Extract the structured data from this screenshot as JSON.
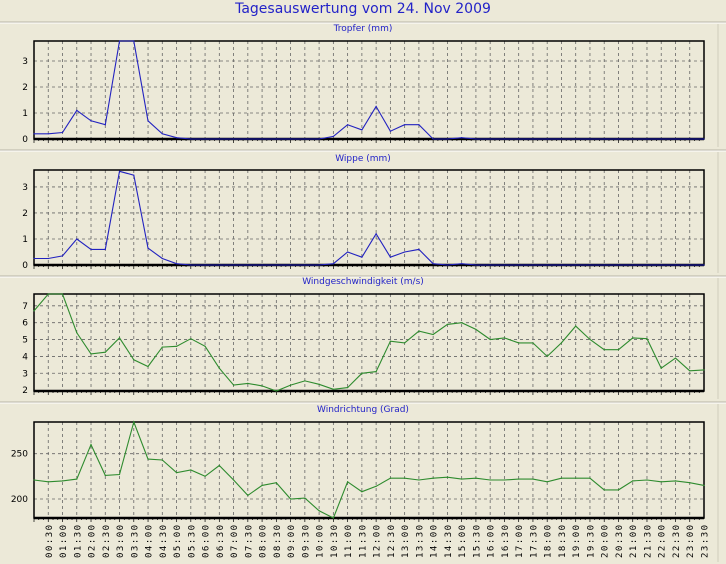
{
  "title": "Tagesauswertung vom 24. Nov 2009",
  "chart_data": [
    {
      "type": "line",
      "title": "Tropfer (mm)",
      "color": "#2222c0",
      "ylim": [
        0,
        3.77
      ],
      "yticks": [
        0,
        1,
        2,
        3
      ],
      "grid": true,
      "values": [
        0.2,
        0.2,
        0.25,
        1.1,
        0.7,
        0.55,
        3.8,
        3.8,
        0.7,
        0.2,
        0.05,
        0,
        0,
        0,
        0,
        0,
        0,
        0,
        0,
        0,
        0,
        0.1,
        0.55,
        0.35,
        1.25,
        0.3,
        0.55,
        0.55,
        0,
        0,
        0.05,
        0,
        0,
        0,
        0,
        0,
        0,
        0,
        0,
        0,
        0,
        0,
        0,
        0,
        0,
        0,
        0,
        0
      ]
    },
    {
      "type": "line",
      "title": "Wippe (mm)",
      "color": "#2222c0",
      "ylim": [
        0,
        3.65
      ],
      "yticks": [
        0,
        1,
        2,
        3
      ],
      "grid": true,
      "values": [
        0.25,
        0.25,
        0.35,
        1.0,
        0.6,
        0.6,
        3.6,
        3.45,
        0.65,
        0.25,
        0.05,
        0,
        0,
        0,
        0,
        0,
        0,
        0,
        0,
        0,
        0,
        0.05,
        0.5,
        0.3,
        1.2,
        0.3,
        0.5,
        0.6,
        0.05,
        0,
        0.05,
        0,
        0,
        0,
        0,
        0,
        0,
        0,
        0,
        0,
        0,
        0,
        0,
        0,
        0,
        0,
        0,
        0
      ]
    },
    {
      "type": "line",
      "title": "Windgeschwindigkeit (m/s)",
      "color": "#2e8b2e",
      "ylim": [
        1.95,
        7.7
      ],
      "yticks": [
        2,
        3,
        4,
        5,
        6,
        7
      ],
      "grid": true,
      "values": [
        6.7,
        7.7,
        7.7,
        5.4,
        4.15,
        4.25,
        5.1,
        3.8,
        3.4,
        4.55,
        4.6,
        5.05,
        4.6,
        3.3,
        2.3,
        2.4,
        2.25,
        1.95,
        2.3,
        2.55,
        2.35,
        2.05,
        2.15,
        3.0,
        3.1,
        4.9,
        4.8,
        5.5,
        5.3,
        5.9,
        6.0,
        5.6,
        5.0,
        5.1,
        4.8,
        4.8,
        4.0,
        4.8,
        5.8,
        5.0,
        4.4,
        4.4,
        5.1,
        5.05,
        3.3,
        3.9,
        3.15,
        3.2
      ]
    },
    {
      "type": "line",
      "title": "Windrichtung (Grad)",
      "color": "#2e8b2e",
      "ylim": [
        179,
        285
      ],
      "yticks": [
        200,
        250
      ],
      "grid": true,
      "values": [
        221,
        219,
        220,
        222,
        260,
        226,
        227,
        285,
        244,
        243,
        229,
        232,
        225,
        237,
        221,
        204,
        215,
        218,
        200,
        201,
        187,
        179,
        219,
        208,
        214,
        223,
        223,
        221,
        223,
        224,
        222,
        223,
        221,
        221,
        222,
        222,
        219,
        223,
        223,
        223,
        210,
        210,
        220,
        221,
        219,
        220,
        218,
        215
      ]
    }
  ],
  "x": [
    "00:00",
    "00:30",
    "01:00",
    "01:30",
    "02:00",
    "02:30",
    "03:00",
    "03:30",
    "04:00",
    "04:30",
    "05:00",
    "05:30",
    "06:00",
    "06:30",
    "07:00",
    "07:30",
    "08:00",
    "08:30",
    "09:00",
    "09:30",
    "10:00",
    "10:30",
    "11:00",
    "11:30",
    "12:00",
    "12:30",
    "13:00",
    "13:30",
    "14:00",
    "14:30",
    "15:00",
    "15:30",
    "16:00",
    "16:30",
    "17:00",
    "17:30",
    "18:00",
    "18:30",
    "19:00",
    "19:30",
    "20:00",
    "20:30",
    "21:00",
    "21:30",
    "22:00",
    "22:30",
    "23:00",
    "23:30"
  ],
  "xlabel": "",
  "ylabel": ""
}
